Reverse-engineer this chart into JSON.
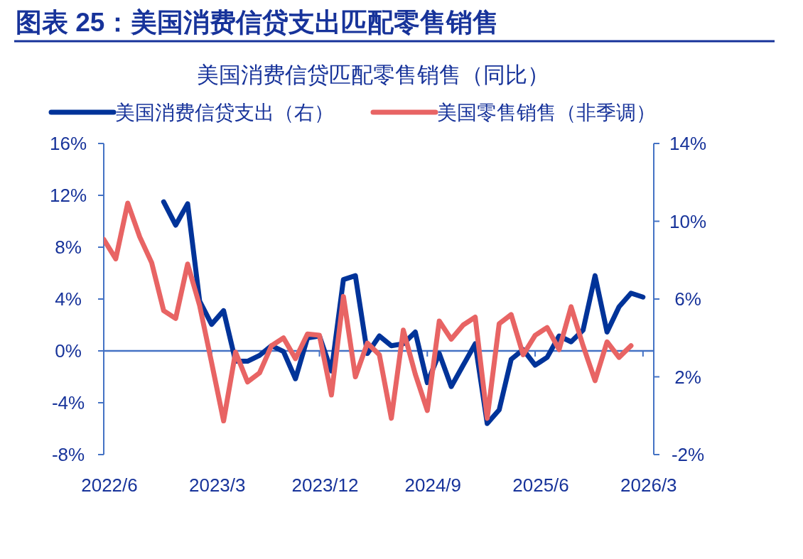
{
  "chart_data": {
    "type": "line",
    "title": "图表 25：美国消费信贷支出匹配零售销售",
    "subtitle": "美国消费信贷匹配零售销售（同比）",
    "x": [
      "2022-06",
      "2022-07",
      "2022-08",
      "2022-09",
      "2022-10",
      "2022-11",
      "2022-12",
      "2023-01",
      "2023-02",
      "2023-03",
      "2023-04",
      "2023-05",
      "2023-06",
      "2023-07",
      "2023-08",
      "2023-09",
      "2023-10",
      "2023-11",
      "2023-12",
      "2024-01",
      "2024-02",
      "2024-03",
      "2024-04",
      "2024-05",
      "2024-06",
      "2024-07",
      "2024-08",
      "2024-09",
      "2024-10",
      "2024-11",
      "2024-12",
      "2025-01",
      "2025-02",
      "2025-03",
      "2025-04",
      "2025-05",
      "2025-06",
      "2025-07",
      "2025-08",
      "2025-09",
      "2025-10",
      "2025-11",
      "2025-12",
      "2026-01",
      "2026-02",
      "2026-03"
    ],
    "series": [
      {
        "name": "美国消费信贷支出（右）",
        "color": "#003399",
        "axis": "y2",
        "values": [
          null,
          null,
          null,
          null,
          null,
          11.0,
          9.8,
          10.9,
          5.9,
          4.7,
          5.4,
          2.8,
          2.8,
          3.1,
          3.6,
          3.3,
          1.9,
          4.0,
          4.1,
          2.3,
          7.0,
          7.2,
          3.2,
          4.1,
          3.6,
          3.7,
          4.3,
          1.7,
          3.2,
          1.5,
          2.6,
          3.7,
          -0.4,
          0.3,
          2.9,
          3.4,
          2.6,
          3.0,
          4.1,
          3.8,
          4.4,
          7.2,
          4.3,
          5.6,
          6.3,
          6.1
        ]
      },
      {
        "name": "美国零售销售（非季调）",
        "color": "#e86464",
        "values": [
          8.6,
          7.1,
          11.4,
          8.8,
          6.8,
          3.1,
          2.5,
          6.7,
          3.5,
          -0.9,
          -5.4,
          -0.1,
          -2.4,
          -1.7,
          0.4,
          1.0,
          -0.6,
          1.3,
          1.2,
          -3.4,
          4.2,
          -2.0,
          0.6,
          -0.3,
          -5.2,
          1.6,
          -1.8,
          -4.6,
          2.3,
          0.9,
          2.0,
          2.6,
          -5.2,
          2.1,
          2.8,
          -0.3,
          1.2,
          1.8,
          0.1,
          3.4,
          0.4,
          -2.3,
          0.7,
          -0.5,
          0.4,
          null
        ]
      }
    ],
    "xlim": [
      "2022-06-01",
      "2026-03-28"
    ],
    "xticks": [
      {
        "value": "2022-06",
        "label": "2022/6"
      },
      {
        "value": "2023-03",
        "label": "2023/3"
      },
      {
        "value": "2023-12",
        "label": "2023/12"
      },
      {
        "value": "2024-09",
        "label": "2024/9"
      },
      {
        "value": "2025-06",
        "label": "2025/6"
      },
      {
        "value": "2026-03",
        "label": "2026/3"
      }
    ],
    "ylim": [
      -8,
      16
    ],
    "yticks": [
      {
        "value": -8,
        "label": "-8%"
      },
      {
        "value": -4,
        "label": "-4%"
      },
      {
        "value": 0,
        "label": "0%"
      },
      {
        "value": 4,
        "label": "4%"
      },
      {
        "value": 8,
        "label": "8%"
      },
      {
        "value": 12,
        "label": "12%"
      },
      {
        "value": 16,
        "label": "16%"
      }
    ],
    "y2lim": [
      -2,
      14
    ],
    "y2ticks": [
      {
        "value": -2,
        "label": "-2%"
      },
      {
        "value": 2,
        "label": "2%"
      },
      {
        "value": 6,
        "label": "6%"
      },
      {
        "value": 10,
        "label": "10%"
      },
      {
        "value": 14,
        "label": "14%"
      }
    ],
    "ref_lines": [
      {
        "axis": "y",
        "value": 0,
        "color": "#4472c4"
      }
    ],
    "legend": "top",
    "grid": false,
    "line_style": "solid",
    "marker": "none"
  }
}
